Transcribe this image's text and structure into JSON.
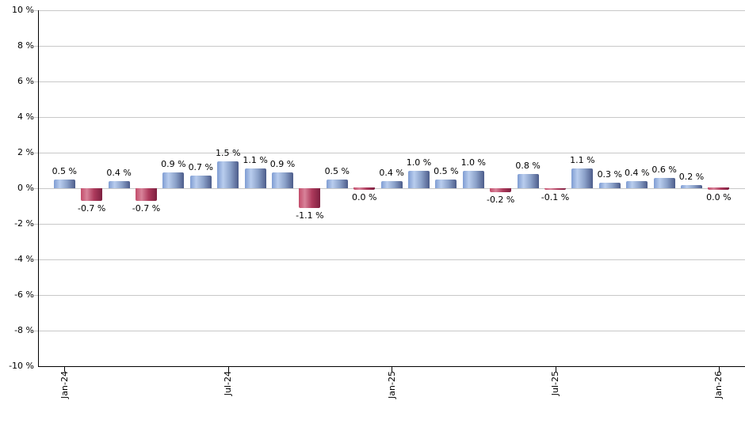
{
  "chart_data": {
    "type": "bar",
    "title": "",
    "xlabel": "",
    "ylabel": "",
    "x": [
      "Jan-24",
      "Feb-24",
      "Mar-24",
      "Apr-24",
      "May-24",
      "Jun-24",
      "Jul-24",
      "Aug-24",
      "Sep-24",
      "Oct-24",
      "Nov-24",
      "Dec-24",
      "Jan-25",
      "Feb-25",
      "Mar-25",
      "Apr-25",
      "May-25",
      "Jun-25",
      "Jul-25",
      "Aug-25",
      "Sep-25",
      "Oct-25",
      "Nov-25",
      "Dec-25",
      "Jan-26"
    ],
    "values": [
      0.5,
      -0.7,
      0.4,
      -0.7,
      0.9,
      0.7,
      1.5,
      1.1,
      0.9,
      -1.1,
      0.5,
      0.0,
      0.4,
      1.0,
      0.5,
      1.0,
      -0.2,
      0.8,
      -0.1,
      1.1,
      0.3,
      0.4,
      0.6,
      0.2,
      0.0
    ],
    "bar_labels": [
      "0.5 %",
      "-0.7 %",
      "0.4 %",
      "-0.7 %",
      "0.9 %",
      "0.7 %",
      "1.5 %",
      "1.1 %",
      "0.9 %",
      "-1.1 %",
      "0.5 %",
      "0.0 %",
      "0.4 %",
      "1.0 %",
      "0.5 %",
      "1.0 %",
      "-0.2 %",
      "0.8 %",
      "-0.1 %",
      "1.1 %",
      "0.3 %",
      "0.4 %",
      "0.6 %",
      "0.2 %",
      "0.0 %"
    ],
    "ylim": [
      -10,
      10
    ],
    "y_tick_step": 2,
    "y_tick_labels": [
      "10 %",
      "8 %",
      "6 %",
      "4 %",
      "2 %",
      "0 %",
      "-2 %",
      "-4 %",
      "-6 %",
      "-8 %",
      "-10 %"
    ],
    "y_tick_values": [
      10,
      8,
      6,
      4,
      2,
      0,
      -2,
      -4,
      -6,
      -8,
      -10
    ],
    "x_tick_labels": [
      "Jan-24",
      "Jul-24",
      "Jan-25",
      "Jul-25",
      "Jan-26"
    ],
    "x_tick_indices": [
      0,
      6,
      12,
      18,
      24
    ],
    "grid": true,
    "legend": "none",
    "colors": {
      "positive_gradient": [
        "#7e9cd2",
        "#b9cdee",
        "#8ba1c9",
        "#4c5c8a"
      ],
      "negative_gradient": [
        "#c34c6a",
        "#d8839a",
        "#ad3a5c",
        "#7d2040"
      ],
      "gridline": "#c8c8c8",
      "axis": "#000000",
      "label": "#000000",
      "background": "#ffffff"
    }
  }
}
